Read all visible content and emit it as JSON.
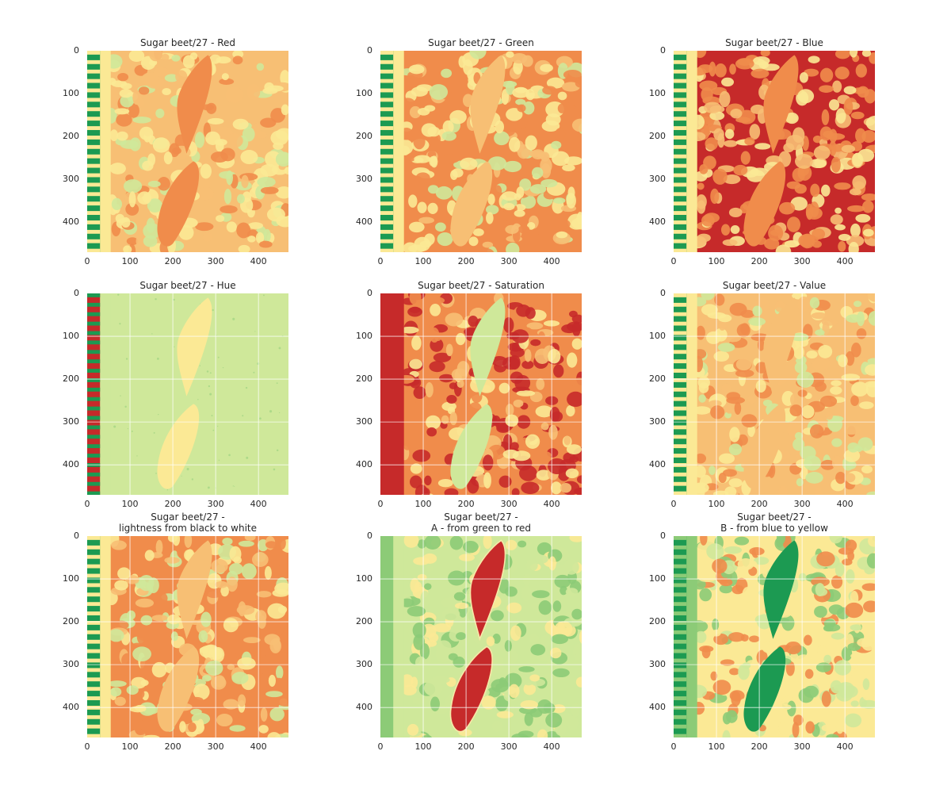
{
  "figure": {
    "panels": [
      {
        "title": "Sugar beet/27 - Red",
        "channel": "red"
      },
      {
        "title": "Sugar beet/27 - Green",
        "channel": "green"
      },
      {
        "title": "Sugar beet/27 - Blue",
        "channel": "blue"
      },
      {
        "title": "Sugar beet/27 - Hue",
        "channel": "hue"
      },
      {
        "title": "Sugar beet/27 - Saturation",
        "channel": "saturation"
      },
      {
        "title": "Sugar beet/27 - Value",
        "channel": "value"
      },
      {
        "title": "Sugar beet/27 -\nlightness from black to white",
        "channel": "lightness"
      },
      {
        "title": "Sugar beet/27 -\nA - from green to red",
        "channel": "a"
      },
      {
        "title": "Sugar beet/27 -\nB - from blue to yellow",
        "channel": "b"
      }
    ],
    "x_ticks": [
      "0",
      "100",
      "200",
      "300",
      "400"
    ],
    "y_ticks": [
      "0",
      "100",
      "200",
      "300",
      "400"
    ],
    "axis_range": [
      0,
      470
    ],
    "colormap": "RdYlGn",
    "colors": {
      "red": "#c62a2a",
      "orange": "#f08c4b",
      "light_orange": "#f7bf74",
      "yellow": "#fbe995",
      "light_green": "#cfe89a",
      "green": "#8ccb77",
      "dark_green": "#1c9a52"
    }
  }
}
